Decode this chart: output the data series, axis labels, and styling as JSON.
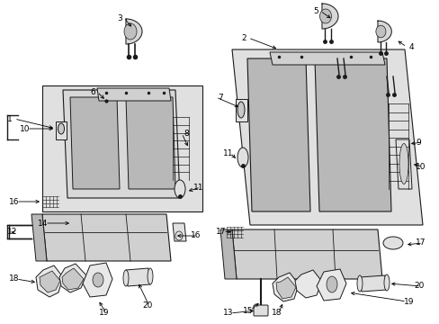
{
  "bg_color": "#ffffff",
  "figsize": [
    4.89,
    3.6
  ],
  "dpi": 100,
  "box_fill": "#e8e8e8",
  "line_color": "#1a1a1a",
  "label_fontsize": 6.5,
  "seat_fill": "#d4d4d4",
  "seat_dark": "#b0b0b0",
  "seat_mid": "#c0c0c0"
}
